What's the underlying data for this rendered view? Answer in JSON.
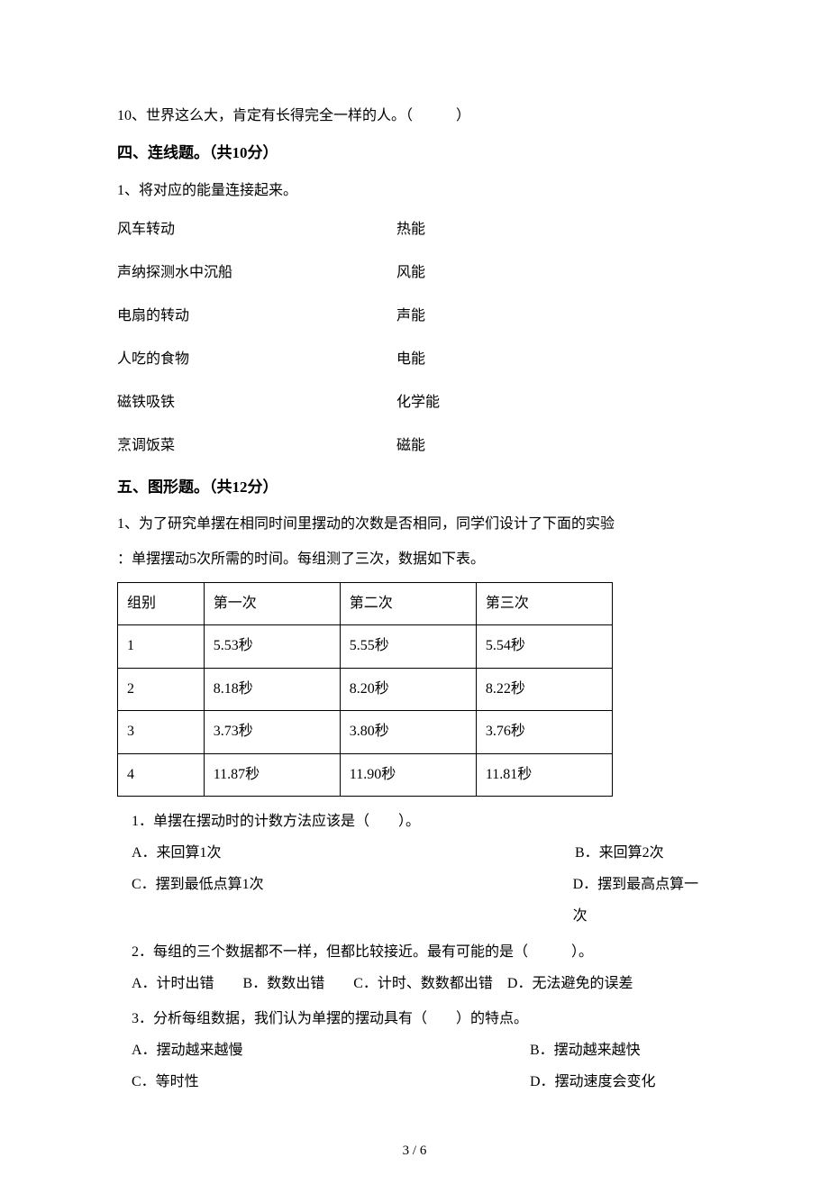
{
  "q10": "10、世界这么大，肯定有长得完全一样的人。（　　　）",
  "section4": {
    "header": "四、连线题。（共10分）",
    "prompt": "1、将对应的能量连接起来。",
    "pairs": [
      {
        "left": "风车转动",
        "right": "热能"
      },
      {
        "left": "声纳探测水中沉船",
        "right": "风能"
      },
      {
        "left": "电扇的转动",
        "right": "声能"
      },
      {
        "left": "人吃的食物",
        "right": "电能"
      },
      {
        "left": "磁铁吸铁",
        "right": "化学能"
      },
      {
        "left": "烹调饭菜",
        "right": "磁能"
      }
    ]
  },
  "section5": {
    "header": "五、图形题。（共12分）",
    "intro1": "1、为了研究单摆在相同时间里摆动的次数是否相同，同学们设计了下面的实验",
    "intro2": "：单摆摆动5次所需的时间。每组测了三次，数据如下表。",
    "table": {
      "headers": [
        "组别",
        "第一次",
        "第二次",
        "第三次"
      ],
      "rows": [
        [
          "1",
          "5.53秒",
          "5.55秒",
          "5.54秒"
        ],
        [
          "2",
          "8.18秒",
          "8.20秒",
          "8.22秒"
        ],
        [
          "3",
          "3.73秒",
          "3.80秒",
          "3.76秒"
        ],
        [
          "4",
          "11.87秒",
          "11.90秒",
          "11.81秒"
        ]
      ]
    },
    "q1": {
      "stem": "1．单摆在摆动时的计数方法应该是（　　）。",
      "A": "A．来回算1次",
      "B": "B．来回算2次",
      "C": "C．摆到最低点算1次",
      "D": "D．摆到最高点算一次"
    },
    "q2": {
      "stem": "2．每组的三个数据都不一样，但都比较接近。最有可能的是（　　　）。",
      "line": "A．计时出错　　B．数数出错　　C．计时、数数都出错　D．无法避免的误差"
    },
    "q3": {
      "stem": "3．分析每组数据，我们认为单摆的摆动具有（　　）的特点。",
      "A": "A．摆动越来越慢",
      "B": "B．摆动越来越快",
      "C": "C．等时性",
      "D": "D．摆动速度会变化"
    }
  },
  "pageNum": "3 / 6"
}
